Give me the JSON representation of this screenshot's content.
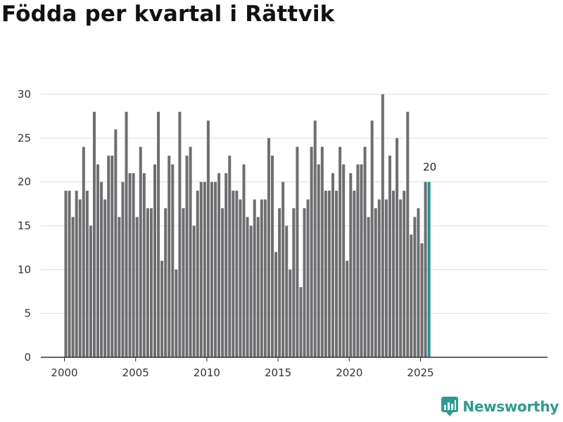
{
  "title": "Födda per kvartal i Rättvik",
  "brand": {
    "name": "Newsworthy",
    "color": "#2b9c8f"
  },
  "colors": {
    "bar": "#6e6d70",
    "highlight": "#1a9a8c",
    "grid": "#dddddd",
    "axis": "#333333"
  },
  "chart_data": {
    "type": "bar",
    "title": "Födda per kvartal i Rättvik",
    "xlabel": "",
    "ylabel": "",
    "ylim": [
      0,
      30
    ],
    "yticks": [
      0,
      5,
      10,
      15,
      20,
      25,
      30
    ],
    "xticks": [
      "2000",
      "2005",
      "2010",
      "2015",
      "2020",
      "2025"
    ],
    "start_year": 2000,
    "grid": true,
    "highlight_last": true,
    "highlight_label": "20",
    "values": [
      19,
      19,
      16,
      19,
      18,
      24,
      19,
      15,
      28,
      22,
      20,
      18,
      23,
      23,
      26,
      16,
      20,
      28,
      21,
      21,
      16,
      24,
      21,
      17,
      17,
      22,
      28,
      11,
      17,
      23,
      22,
      10,
      28,
      17,
      23,
      24,
      15,
      19,
      20,
      20,
      27,
      20,
      20,
      21,
      17,
      21,
      23,
      19,
      19,
      18,
      22,
      16,
      15,
      18,
      16,
      18,
      18,
      25,
      23,
      12,
      17,
      20,
      15,
      10,
      17,
      24,
      8,
      17,
      18,
      24,
      27,
      22,
      24,
      19,
      19,
      21,
      19,
      24,
      22,
      11,
      21,
      19,
      22,
      22,
      24,
      16,
      27,
      17,
      18,
      30,
      18,
      23,
      19,
      25,
      18,
      19,
      28,
      14,
      16,
      17,
      13,
      20,
      20
    ]
  }
}
